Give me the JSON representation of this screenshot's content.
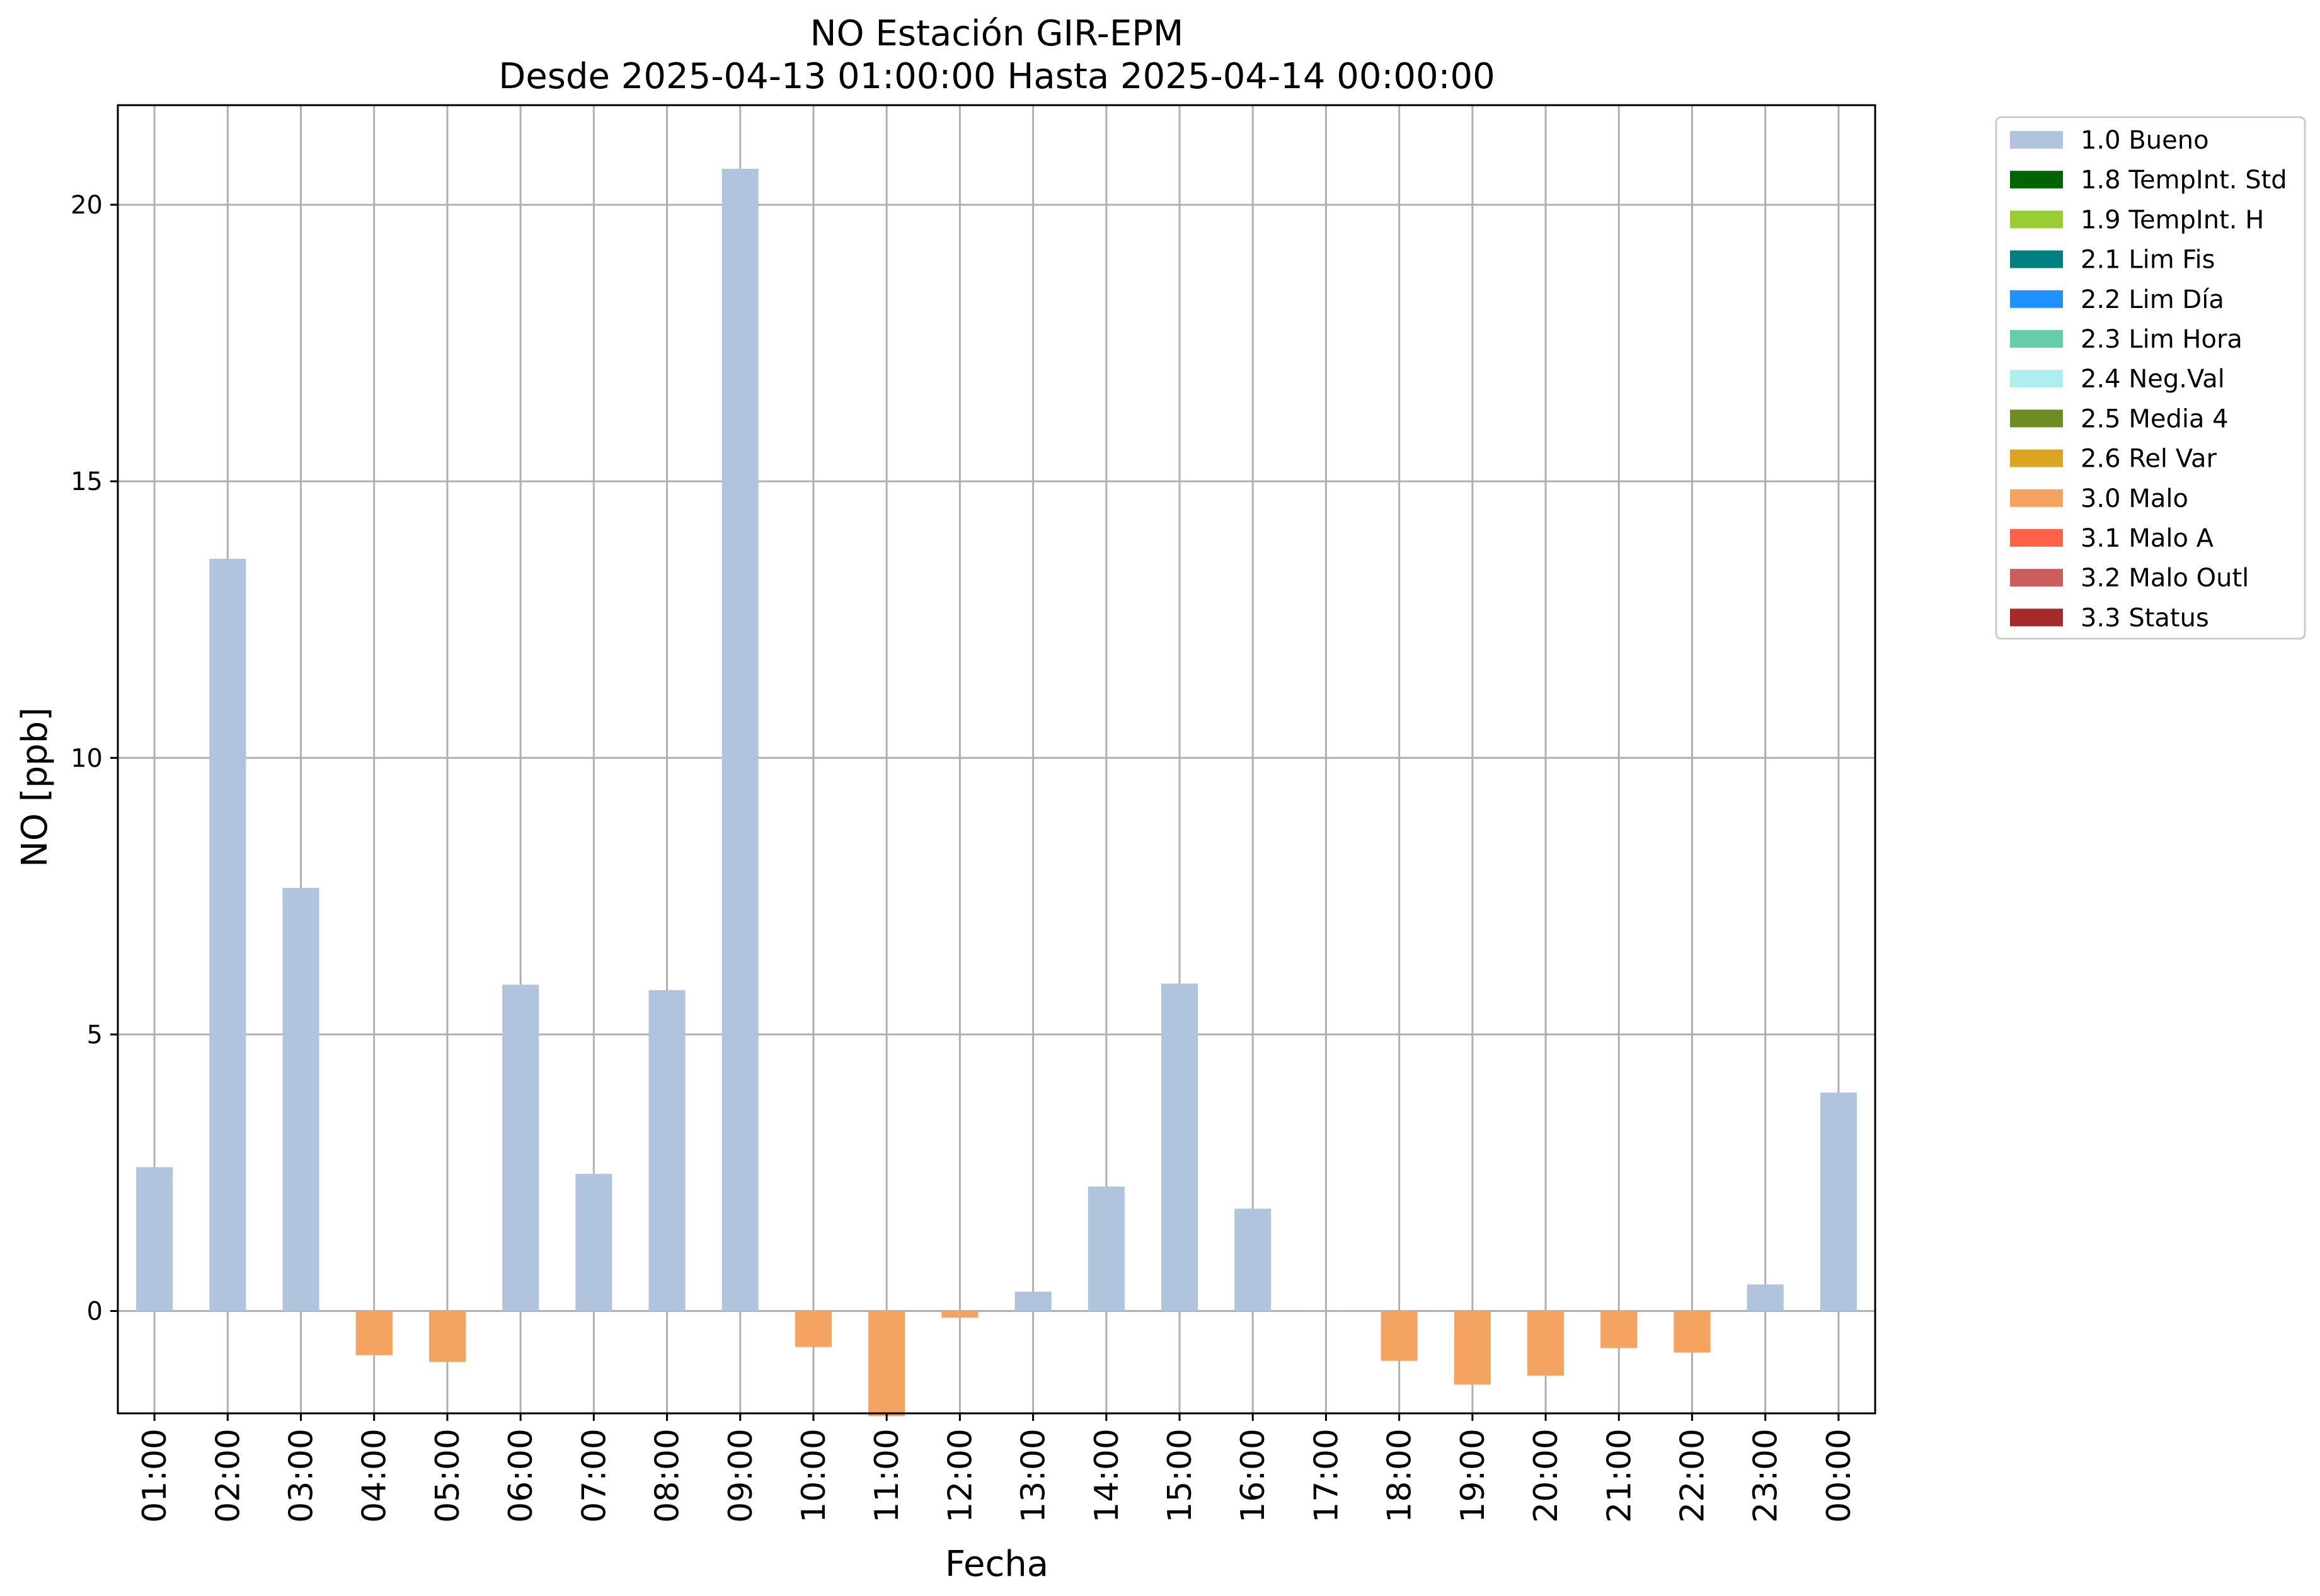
{
  "chart_data": {
    "type": "bar",
    "title_line1": "NO Estación GIR-EPM",
    "title_line2": "Desde 2025-04-13 01:00:00 Hasta 2025-04-14 00:00:00",
    "xlabel": "Fecha",
    "ylabel": "NO [ppb]",
    "ylim": [
      -1.85,
      21.8
    ],
    "yticks": [
      0,
      5,
      10,
      15,
      20
    ],
    "grid": true,
    "legend_position": "outside-right-top",
    "categories": [
      "01:00",
      "02:00",
      "03:00",
      "04:00",
      "05:00",
      "06:00",
      "07:00",
      "08:00",
      "09:00",
      "10:00",
      "11:00",
      "12:00",
      "13:00",
      "14:00",
      "15:00",
      "16:00",
      "17:00",
      "18:00",
      "19:00",
      "20:00",
      "21:00",
      "22:00",
      "23:00",
      "00:00"
    ],
    "values": [
      2.6,
      13.6,
      7.65,
      -0.8,
      -0.92,
      5.9,
      2.48,
      5.8,
      20.65,
      -0.65,
      -1.9,
      -0.12,
      0.35,
      2.25,
      5.92,
      1.85,
      0.0,
      -0.9,
      -1.33,
      -1.17,
      -0.67,
      -0.75,
      0.48,
      3.95
    ],
    "flags": [
      "1.0",
      "1.0",
      "1.0",
      "3.0",
      "3.0",
      "1.0",
      "1.0",
      "1.0",
      "1.0",
      "3.0",
      "3.0",
      "3.0",
      "1.0",
      "1.0",
      "1.0",
      "1.0",
      "1.0",
      "3.0",
      "3.0",
      "3.0",
      "3.0",
      "3.0",
      "1.0",
      "1.0"
    ],
    "legend": [
      {
        "code": "1.0",
        "label": "1.0 Bueno",
        "color": "#b0c4de"
      },
      {
        "code": "1.8",
        "label": "1.8 TempInt. Std",
        "color": "#006400"
      },
      {
        "code": "1.9",
        "label": "1.9 TempInt. H",
        "color": "#9acd32"
      },
      {
        "code": "2.1",
        "label": "2.1 Lim Fis",
        "color": "#008080"
      },
      {
        "code": "2.2",
        "label": "2.2 Lim Día",
        "color": "#1e90ff"
      },
      {
        "code": "2.3",
        "label": "2.3 Lim Hora",
        "color": "#66cdaa"
      },
      {
        "code": "2.4",
        "label": "2.4 Neg.Val",
        "color": "#afeeee"
      },
      {
        "code": "2.5",
        "label": "2.5 Media 4",
        "color": "#6b8e23"
      },
      {
        "code": "2.6",
        "label": "2.6 Rel Var",
        "color": "#daa520"
      },
      {
        "code": "3.0",
        "label": "3.0 Malo",
        "color": "#f4a460"
      },
      {
        "code": "3.1",
        "label": "3.1 Malo A",
        "color": "#ff6347"
      },
      {
        "code": "3.2",
        "label": "3.2 Malo Outl",
        "color": "#cd5c5c"
      },
      {
        "code": "3.3",
        "label": "3.3 Status",
        "color": "#a52a2a"
      }
    ]
  }
}
